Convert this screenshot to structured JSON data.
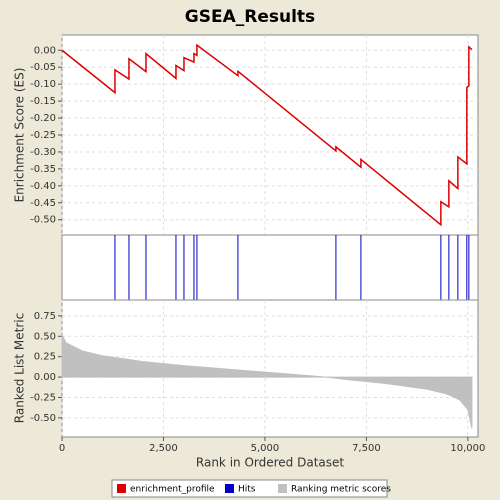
{
  "chart_data": [
    {
      "type": "line",
      "title": "GSEA_Results",
      "y_label": "Enrichment Score (ES)",
      "xlim": [
        0,
        10250
      ],
      "ylim": [
        -0.545,
        0.045
      ],
      "grid": true,
      "yticks": [
        {
          "value": 0,
          "label": "0.00"
        },
        {
          "value": -0.05,
          "label": "-0.05"
        },
        {
          "value": -0.1,
          "label": "-0.10"
        },
        {
          "value": -0.15,
          "label": "-0.15"
        },
        {
          "value": -0.2,
          "label": "-0.20"
        },
        {
          "value": -0.25,
          "label": "-0.25"
        },
        {
          "value": -0.3,
          "label": "-0.30"
        },
        {
          "value": -0.35,
          "label": "-0.35"
        },
        {
          "value": -0.4,
          "label": "-0.40"
        },
        {
          "value": -0.45,
          "label": "-0.45"
        },
        {
          "value": -0.5,
          "label": "-0.50"
        }
      ],
      "series": [
        {
          "name": "enrichment_profile",
          "color": "#dd0000",
          "x": [
            0,
            1305,
            1305,
            1650,
            1650,
            2069,
            2069,
            2808,
            2808,
            3005,
            3005,
            3251,
            3251,
            3325,
            3325,
            4335,
            4335,
            6749,
            6749,
            7365,
            7365,
            9335,
            9335,
            9532,
            9532,
            9754,
            9754,
            9975,
            9975,
            10025,
            10025,
            10100
          ],
          "values": [
            0,
            -0.125,
            -0.058,
            -0.085,
            -0.025,
            -0.063,
            -0.01,
            -0.083,
            -0.045,
            -0.06,
            -0.022,
            -0.035,
            -0.01,
            -0.015,
            0.015,
            -0.075,
            -0.062,
            -0.297,
            -0.285,
            -0.345,
            -0.322,
            -0.515,
            -0.447,
            -0.462,
            -0.385,
            -0.408,
            -0.315,
            -0.335,
            -0.11,
            -0.105,
            0.01,
            0.002
          ]
        }
      ]
    },
    {
      "type": "hits",
      "xlim": [
        0,
        10250
      ],
      "series": [
        {
          "name": "Hits",
          "color": "#0000cc",
          "x": [
            1305,
            1650,
            2069,
            2808,
            3005,
            3251,
            3325,
            4335,
            6749,
            7365,
            9335,
            9532,
            9754,
            9975,
            10025
          ]
        }
      ]
    },
    {
      "type": "area",
      "x_label": "Rank in Ordered Dataset",
      "y_label": "Ranked List Metric",
      "xlim": [
        0,
        10250
      ],
      "ylim": [
        -0.735,
        0.945
      ],
      "grid": true,
      "xticks": [
        0,
        {
          "value": 2500,
          "label": "2,500"
        },
        {
          "value": 5000,
          "label": "5,000"
        },
        {
          "value": 7500,
          "label": "7,500"
        },
        {
          "value": 10000,
          "label": "10,000"
        }
      ],
      "yticks": [
        {
          "value": 0.75,
          "label": "0.75"
        },
        {
          "value": 0.5,
          "label": "0.50"
        },
        {
          "value": 0.25,
          "label": "0.25"
        },
        {
          "value": 0,
          "label": "0.00"
        },
        {
          "value": -0.25,
          "label": "-0.25"
        },
        {
          "value": -0.5,
          "label": "-0.50"
        }
      ],
      "series": [
        {
          "name": "Ranking metric scores",
          "color": "#c0c0c0",
          "x": [
            0,
            100,
            500,
            1000,
            2000,
            3000,
            4000,
            5000,
            6000,
            6500,
            7000,
            8000,
            9000,
            9500,
            9800,
            10000,
            10100
          ],
          "values": [
            0.52,
            0.42,
            0.32,
            0.26,
            0.19,
            0.14,
            0.1,
            0.06,
            0.02,
            0,
            -0.03,
            -0.08,
            -0.15,
            -0.21,
            -0.28,
            -0.4,
            -0.63
          ]
        }
      ]
    }
  ]
}
